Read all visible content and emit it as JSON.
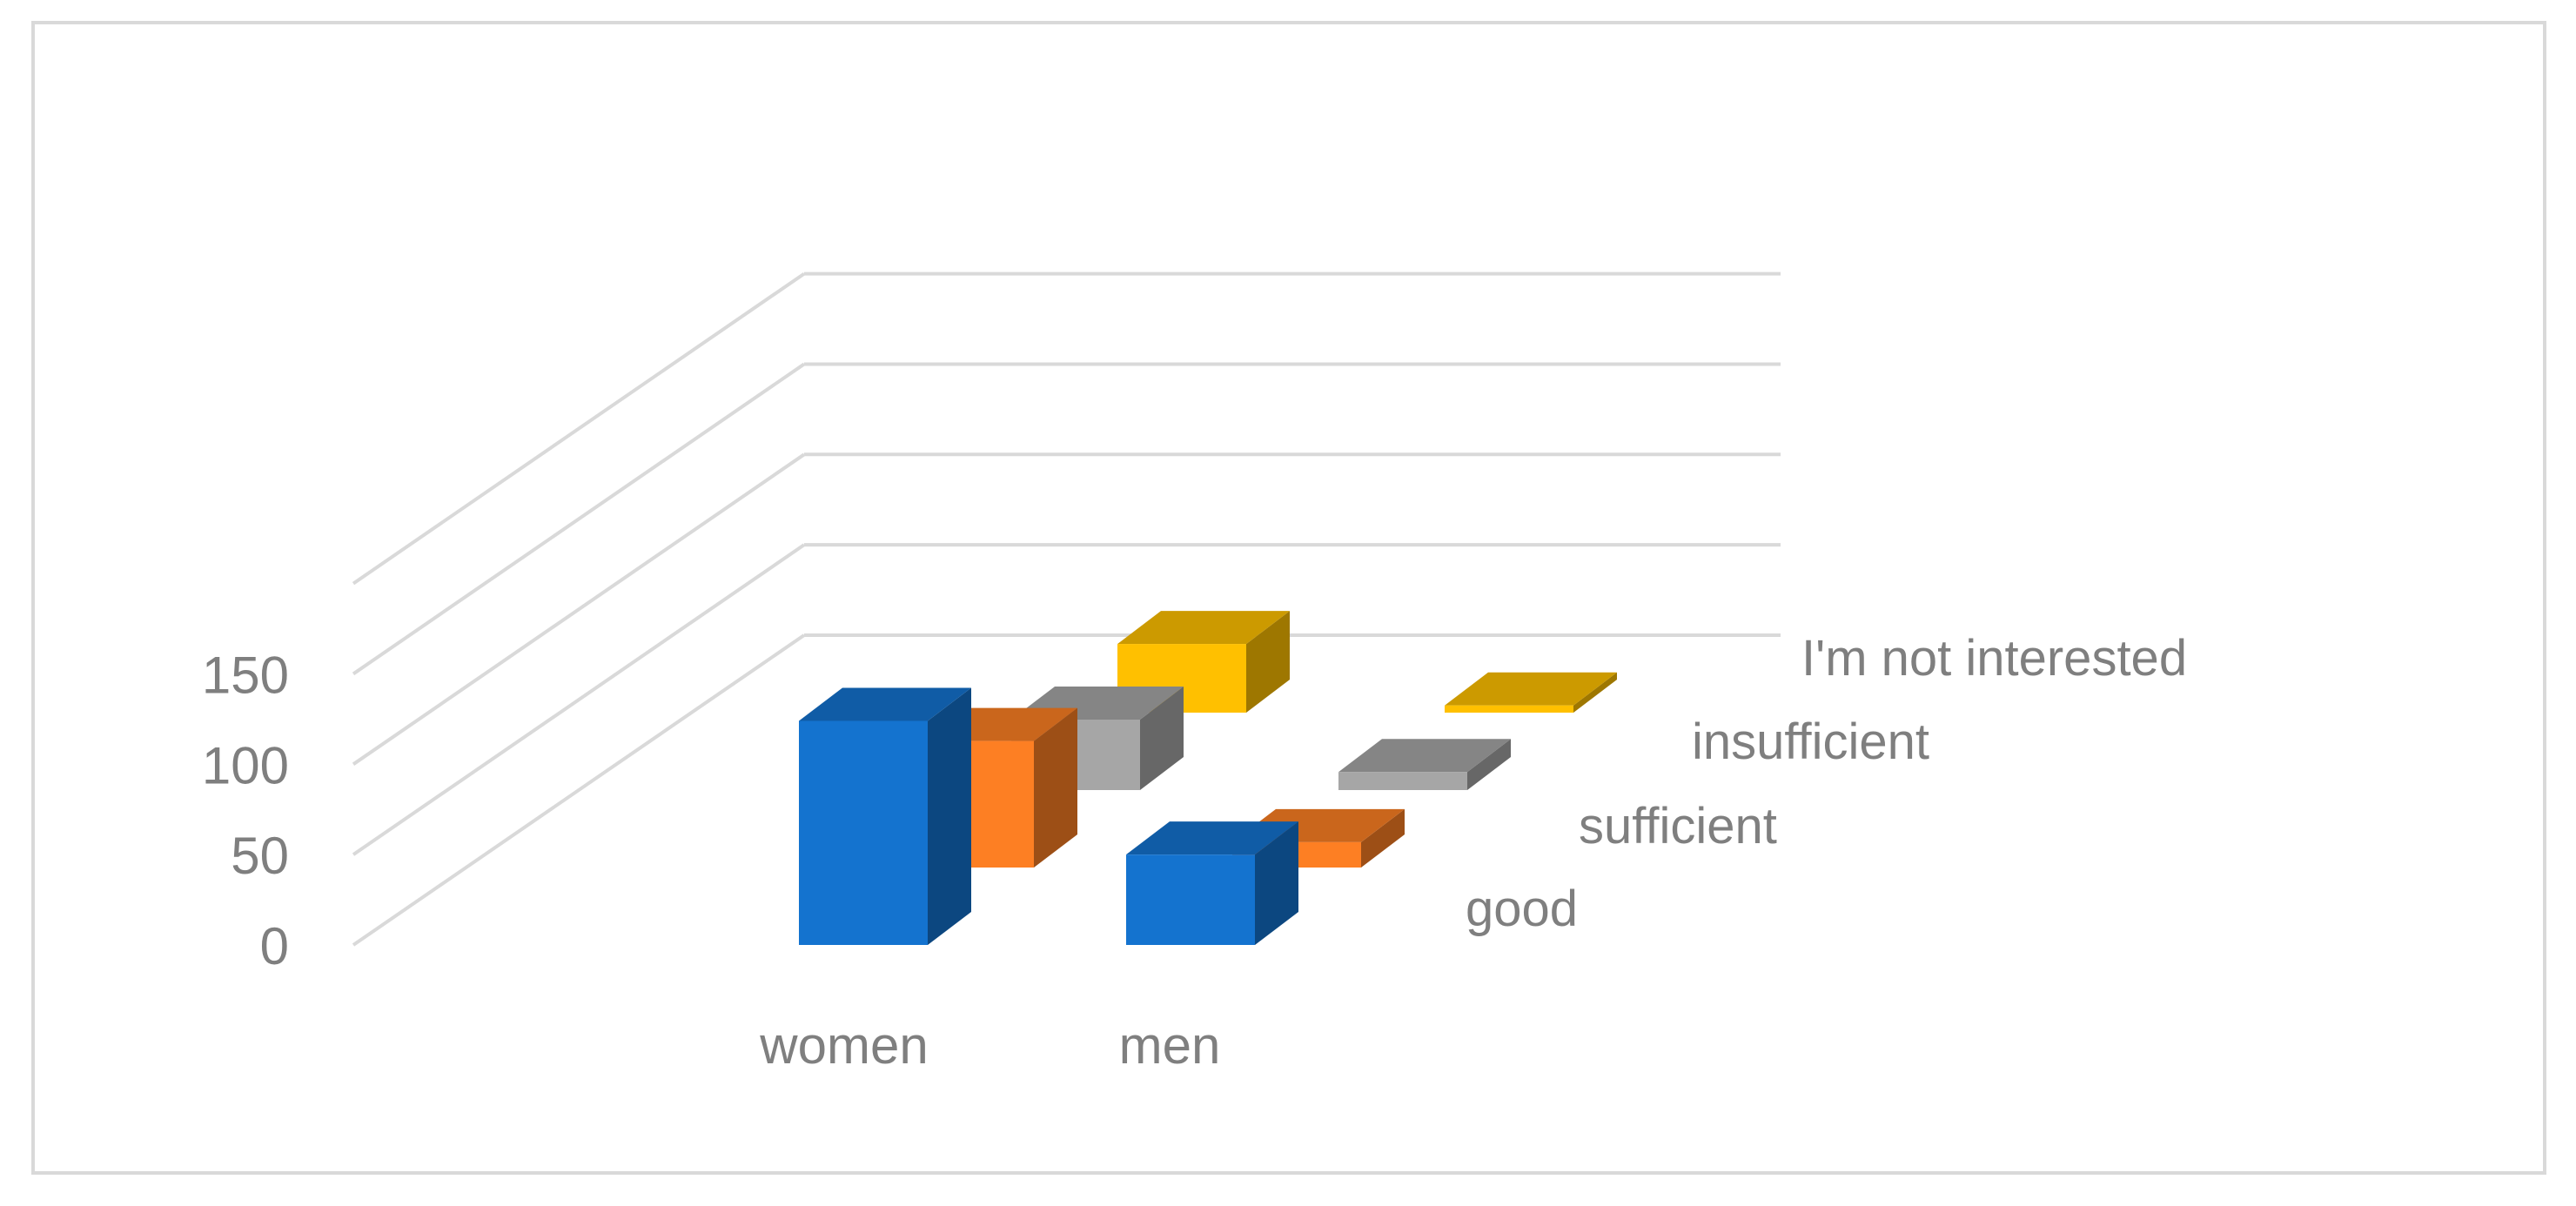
{
  "chart_data": {
    "type": "bar",
    "variant": "3d-column",
    "title": "",
    "xlabel": "",
    "ylabel": "",
    "categories": [
      "women",
      "men"
    ],
    "series": [
      {
        "name": "good",
        "values": [
          124,
          50
        ],
        "color": "#1473cf"
      },
      {
        "name": "sufficient",
        "values": [
          70,
          14
        ],
        "color": "#fd7f23"
      },
      {
        "name": "insufficient",
        "values": [
          39,
          10
        ],
        "color": "#a6a6a6"
      },
      {
        "name": "I'm not interested",
        "values": [
          38,
          4
        ],
        "color": "#ffc000"
      }
    ],
    "y_ticks": [
      "0",
      "50",
      "100",
      "150"
    ],
    "ylim": [
      0,
      150
    ],
    "grid": true,
    "legend": "series labels along depth axis (right)"
  }
}
